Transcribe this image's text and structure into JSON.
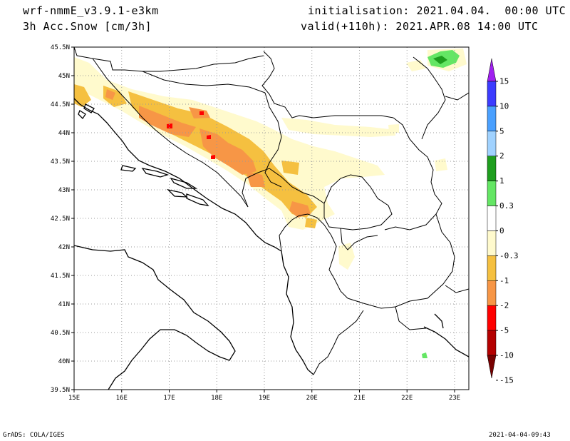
{
  "header": {
    "model": "wrf-nmmE_v3.9.1-e3km",
    "field": "3h Acc.Snow [cm/3h]",
    "init": "initialisation: 2021.04.04.  00:00 UTC",
    "valid": "valid(+110h): 2021.APR.08 14:00 UTC"
  },
  "footer": {
    "credit": "GrADS: COLA/IGES",
    "timestamp": "2021-04-04-09:43"
  },
  "map": {
    "lon_ticks": [
      "15E",
      "16E",
      "17E",
      "18E",
      "19E",
      "20E",
      "21E",
      "22E",
      "23E"
    ],
    "lat_ticks": [
      "45.5N",
      "45N",
      "44.5N",
      "44N",
      "43.5N",
      "43N",
      "42.5N",
      "42N",
      "41.5N",
      "41N",
      "40.5N",
      "40N",
      "39.5N"
    ],
    "lon_range": [
      15,
      23.3
    ],
    "lat_range": [
      39.5,
      45.5
    ],
    "grid": true
  },
  "colorbar": {
    "labels": [
      "15",
      "10",
      "5",
      "2",
      "1",
      "0.3",
      "0",
      "-0.3",
      "-1",
      "-2",
      "-5",
      "-10",
      "-15"
    ],
    "colors": [
      "#a020f0",
      "#3c3cff",
      "#4aa0ff",
      "#a0d2ff",
      "#1e9e1e",
      "#64e664",
      "#ffffff",
      "#fffacd",
      "#f5c040",
      "#f79646",
      "#ff0000",
      "#b40000",
      "#780000"
    ]
  },
  "snow_colors": {
    "light": "#fffacd",
    "moderate": "#f5c040",
    "heavy": "#f79646",
    "extreme": "#ff0000",
    "green": "#1e9e1e",
    "lightgreen": "#64e664"
  }
}
